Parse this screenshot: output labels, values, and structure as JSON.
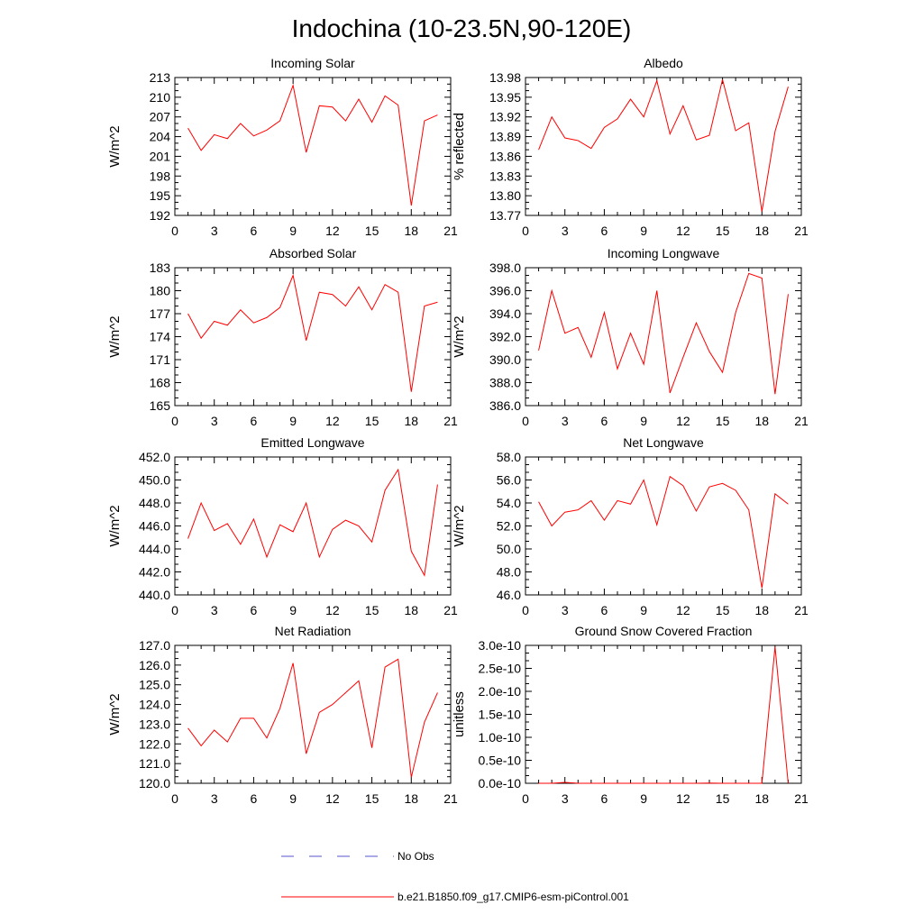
{
  "title": "Indochina (10-23.5N,90-120E)",
  "colors": {
    "model": "#ff0000",
    "obs": "#5555cc",
    "axis": "#000000"
  },
  "legend": [
    {
      "label": "No Obs",
      "style": "dashed",
      "color": "#5555cc"
    },
    {
      "label": "b.e21.B1850.f09_g17.CMIP6-esm-piControl.001",
      "style": "solid",
      "color": "#ff0000"
    }
  ],
  "chart_data": [
    {
      "type": "line",
      "title": "Incoming Solar",
      "ylabel": "W/m^2",
      "xlim": [
        0,
        21
      ],
      "ylim": [
        192,
        213
      ],
      "xticks": [
        "0",
        "3",
        "6",
        "9",
        "12",
        "15",
        "18",
        "21"
      ],
      "yticks": [
        "192",
        "195",
        "198",
        "201",
        "204",
        "207",
        "210",
        "213"
      ],
      "x": [
        1,
        2,
        3,
        4,
        5,
        6,
        7,
        8,
        9,
        10,
        11,
        12,
        13,
        14,
        15,
        16,
        17,
        18,
        19,
        20
      ],
      "series": [
        {
          "name": "b.e21.B1850.f09_g17.CMIP6-esm-piControl.001",
          "values": [
            205.3,
            201.9,
            204.3,
            203.7,
            206.0,
            204.1,
            205.0,
            206.4,
            211.8,
            201.6,
            208.7,
            208.5,
            206.4,
            209.7,
            206.2,
            210.2,
            208.8,
            193.5,
            206.4,
            207.3
          ]
        }
      ]
    },
    {
      "type": "line",
      "title": "Albedo",
      "ylabel": "% reflected",
      "xlim": [
        0,
        21
      ],
      "ylim": [
        13.77,
        13.98
      ],
      "xticks": [
        "0",
        "3",
        "6",
        "9",
        "12",
        "15",
        "18",
        "21"
      ],
      "yticks": [
        "13.77",
        "13.80",
        "13.83",
        "13.86",
        "13.89",
        "13.92",
        "13.95",
        "13.98"
      ],
      "x": [
        1,
        2,
        3,
        4,
        5,
        6,
        7,
        8,
        9,
        10,
        11,
        12,
        13,
        14,
        15,
        16,
        17,
        18,
        19,
        20
      ],
      "series": [
        {
          "name": "b.e21.B1850.f09_g17.CMIP6-esm-piControl.001",
          "values": [
            13.87,
            13.92,
            13.888,
            13.884,
            13.872,
            13.904,
            13.917,
            13.947,
            13.92,
            13.975,
            13.894,
            13.937,
            13.885,
            13.892,
            13.977,
            13.899,
            13.911,
            13.776,
            13.898,
            13.966
          ]
        }
      ]
    },
    {
      "type": "line",
      "title": "Absorbed Solar",
      "ylabel": "W/m^2",
      "xlim": [
        0,
        21
      ],
      "ylim": [
        165,
        183
      ],
      "xticks": [
        "0",
        "3",
        "6",
        "9",
        "12",
        "15",
        "18",
        "21"
      ],
      "yticks": [
        "165",
        "168",
        "171",
        "174",
        "177",
        "180",
        "183"
      ],
      "x": [
        1,
        2,
        3,
        4,
        5,
        6,
        7,
        8,
        9,
        10,
        11,
        12,
        13,
        14,
        15,
        16,
        17,
        18,
        19,
        20
      ],
      "series": [
        {
          "name": "b.e21.B1850.f09_g17.CMIP6-esm-piControl.001",
          "values": [
            177.0,
            173.8,
            176.0,
            175.5,
            177.5,
            175.8,
            176.5,
            177.8,
            182.0,
            173.5,
            179.8,
            179.5,
            178.0,
            180.5,
            177.5,
            180.8,
            179.8,
            166.8,
            178.0,
            178.5
          ]
        }
      ]
    },
    {
      "type": "line",
      "title": "Incoming Longwave",
      "ylabel": "W/m^2",
      "xlim": [
        0,
        21
      ],
      "ylim": [
        386.0,
        398.0
      ],
      "xticks": [
        "0",
        "3",
        "6",
        "9",
        "12",
        "15",
        "18",
        "21"
      ],
      "yticks": [
        "386.0",
        "388.0",
        "390.0",
        "392.0",
        "394.0",
        "396.0",
        "398.0"
      ],
      "x": [
        1,
        2,
        3,
        4,
        5,
        6,
        7,
        8,
        9,
        10,
        11,
        12,
        13,
        14,
        15,
        16,
        17,
        18,
        19,
        20
      ],
      "series": [
        {
          "name": "b.e21.B1850.f09_g17.CMIP6-esm-piControl.001",
          "values": [
            390.8,
            396.0,
            392.3,
            392.8,
            390.2,
            394.1,
            389.2,
            392.3,
            389.6,
            396.0,
            387.1,
            390.2,
            393.2,
            390.7,
            388.9,
            394.1,
            397.5,
            397.1,
            387.0,
            395.7
          ]
        }
      ]
    },
    {
      "type": "line",
      "title": "Emitted Longwave",
      "ylabel": "W/m^2",
      "xlim": [
        0,
        21
      ],
      "ylim": [
        440.0,
        452.0
      ],
      "xticks": [
        "0",
        "3",
        "6",
        "9",
        "12",
        "15",
        "18",
        "21"
      ],
      "yticks": [
        "440.0",
        "442.0",
        "444.0",
        "446.0",
        "448.0",
        "450.0",
        "452.0"
      ],
      "x": [
        1,
        2,
        3,
        4,
        5,
        6,
        7,
        8,
        9,
        10,
        11,
        12,
        13,
        14,
        15,
        16,
        17,
        18,
        19,
        20
      ],
      "series": [
        {
          "name": "b.e21.B1850.f09_g17.CMIP6-esm-piControl.001",
          "values": [
            444.9,
            448.0,
            445.6,
            446.2,
            444.4,
            446.6,
            443.3,
            446.1,
            445.5,
            448.0,
            443.3,
            445.7,
            446.5,
            446.0,
            444.6,
            449.1,
            450.9,
            443.8,
            441.7,
            449.6
          ]
        }
      ]
    },
    {
      "type": "line",
      "title": "Net Longwave",
      "ylabel": "W/m^2",
      "xlim": [
        0,
        21
      ],
      "ylim": [
        46.0,
        58.0
      ],
      "xticks": [
        "0",
        "3",
        "6",
        "9",
        "12",
        "15",
        "18",
        "21"
      ],
      "yticks": [
        "46.0",
        "48.0",
        "50.0",
        "52.0",
        "54.0",
        "56.0",
        "58.0"
      ],
      "x": [
        1,
        2,
        3,
        4,
        5,
        6,
        7,
        8,
        9,
        10,
        11,
        12,
        13,
        14,
        15,
        16,
        17,
        18,
        19,
        20
      ],
      "series": [
        {
          "name": "b.e21.B1850.f09_g17.CMIP6-esm-piControl.001",
          "values": [
            54.1,
            52.0,
            53.2,
            53.4,
            54.2,
            52.5,
            54.2,
            53.9,
            56.0,
            52.1,
            56.3,
            55.5,
            53.3,
            55.4,
            55.7,
            55.1,
            53.4,
            46.6,
            54.8,
            53.9
          ]
        }
      ]
    },
    {
      "type": "line",
      "title": "Net Radiation",
      "ylabel": "W/m^2",
      "xlim": [
        0,
        21
      ],
      "ylim": [
        120.0,
        127.0
      ],
      "xticks": [
        "0",
        "3",
        "6",
        "9",
        "12",
        "15",
        "18",
        "21"
      ],
      "yticks": [
        "120.0",
        "121.0",
        "122.0",
        "123.0",
        "124.0",
        "125.0",
        "126.0",
        "127.0"
      ],
      "x": [
        1,
        2,
        3,
        4,
        5,
        6,
        7,
        8,
        9,
        10,
        11,
        12,
        13,
        14,
        15,
        16,
        17,
        18,
        19,
        20
      ],
      "series": [
        {
          "name": "b.e21.B1850.f09_g17.CMIP6-esm-piControl.001",
          "values": [
            122.8,
            121.9,
            122.7,
            122.1,
            123.3,
            123.3,
            122.3,
            123.8,
            126.1,
            121.5,
            123.6,
            124.0,
            124.6,
            125.2,
            121.8,
            125.9,
            126.3,
            120.3,
            123.1,
            124.6
          ]
        }
      ]
    },
    {
      "type": "line",
      "title": "Ground Snow Covered Fraction",
      "ylabel": "unitless",
      "xlim": [
        0,
        21
      ],
      "ylim": [
        0,
        3e-10
      ],
      "xticks": [
        "0",
        "3",
        "6",
        "9",
        "12",
        "15",
        "18",
        "21"
      ],
      "yticks": [
        "0.0e-10",
        "0.5e-10",
        "1.0e-10",
        "1.5e-10",
        "2.0e-10",
        "2.5e-10",
        "3.0e-10"
      ],
      "x": [
        1,
        2,
        3,
        4,
        5,
        6,
        7,
        8,
        9,
        10,
        11,
        12,
        13,
        14,
        15,
        16,
        17,
        18,
        19,
        20
      ],
      "series": [
        {
          "name": "b.e21.B1850.f09_g17.CMIP6-esm-piControl.001",
          "values": [
            0,
            0,
            2e-12,
            0,
            0,
            0,
            0,
            0,
            0,
            0,
            0,
            0,
            0,
            5e-13,
            0,
            0,
            0,
            0,
            2.97e-10,
            0
          ]
        }
      ]
    }
  ]
}
